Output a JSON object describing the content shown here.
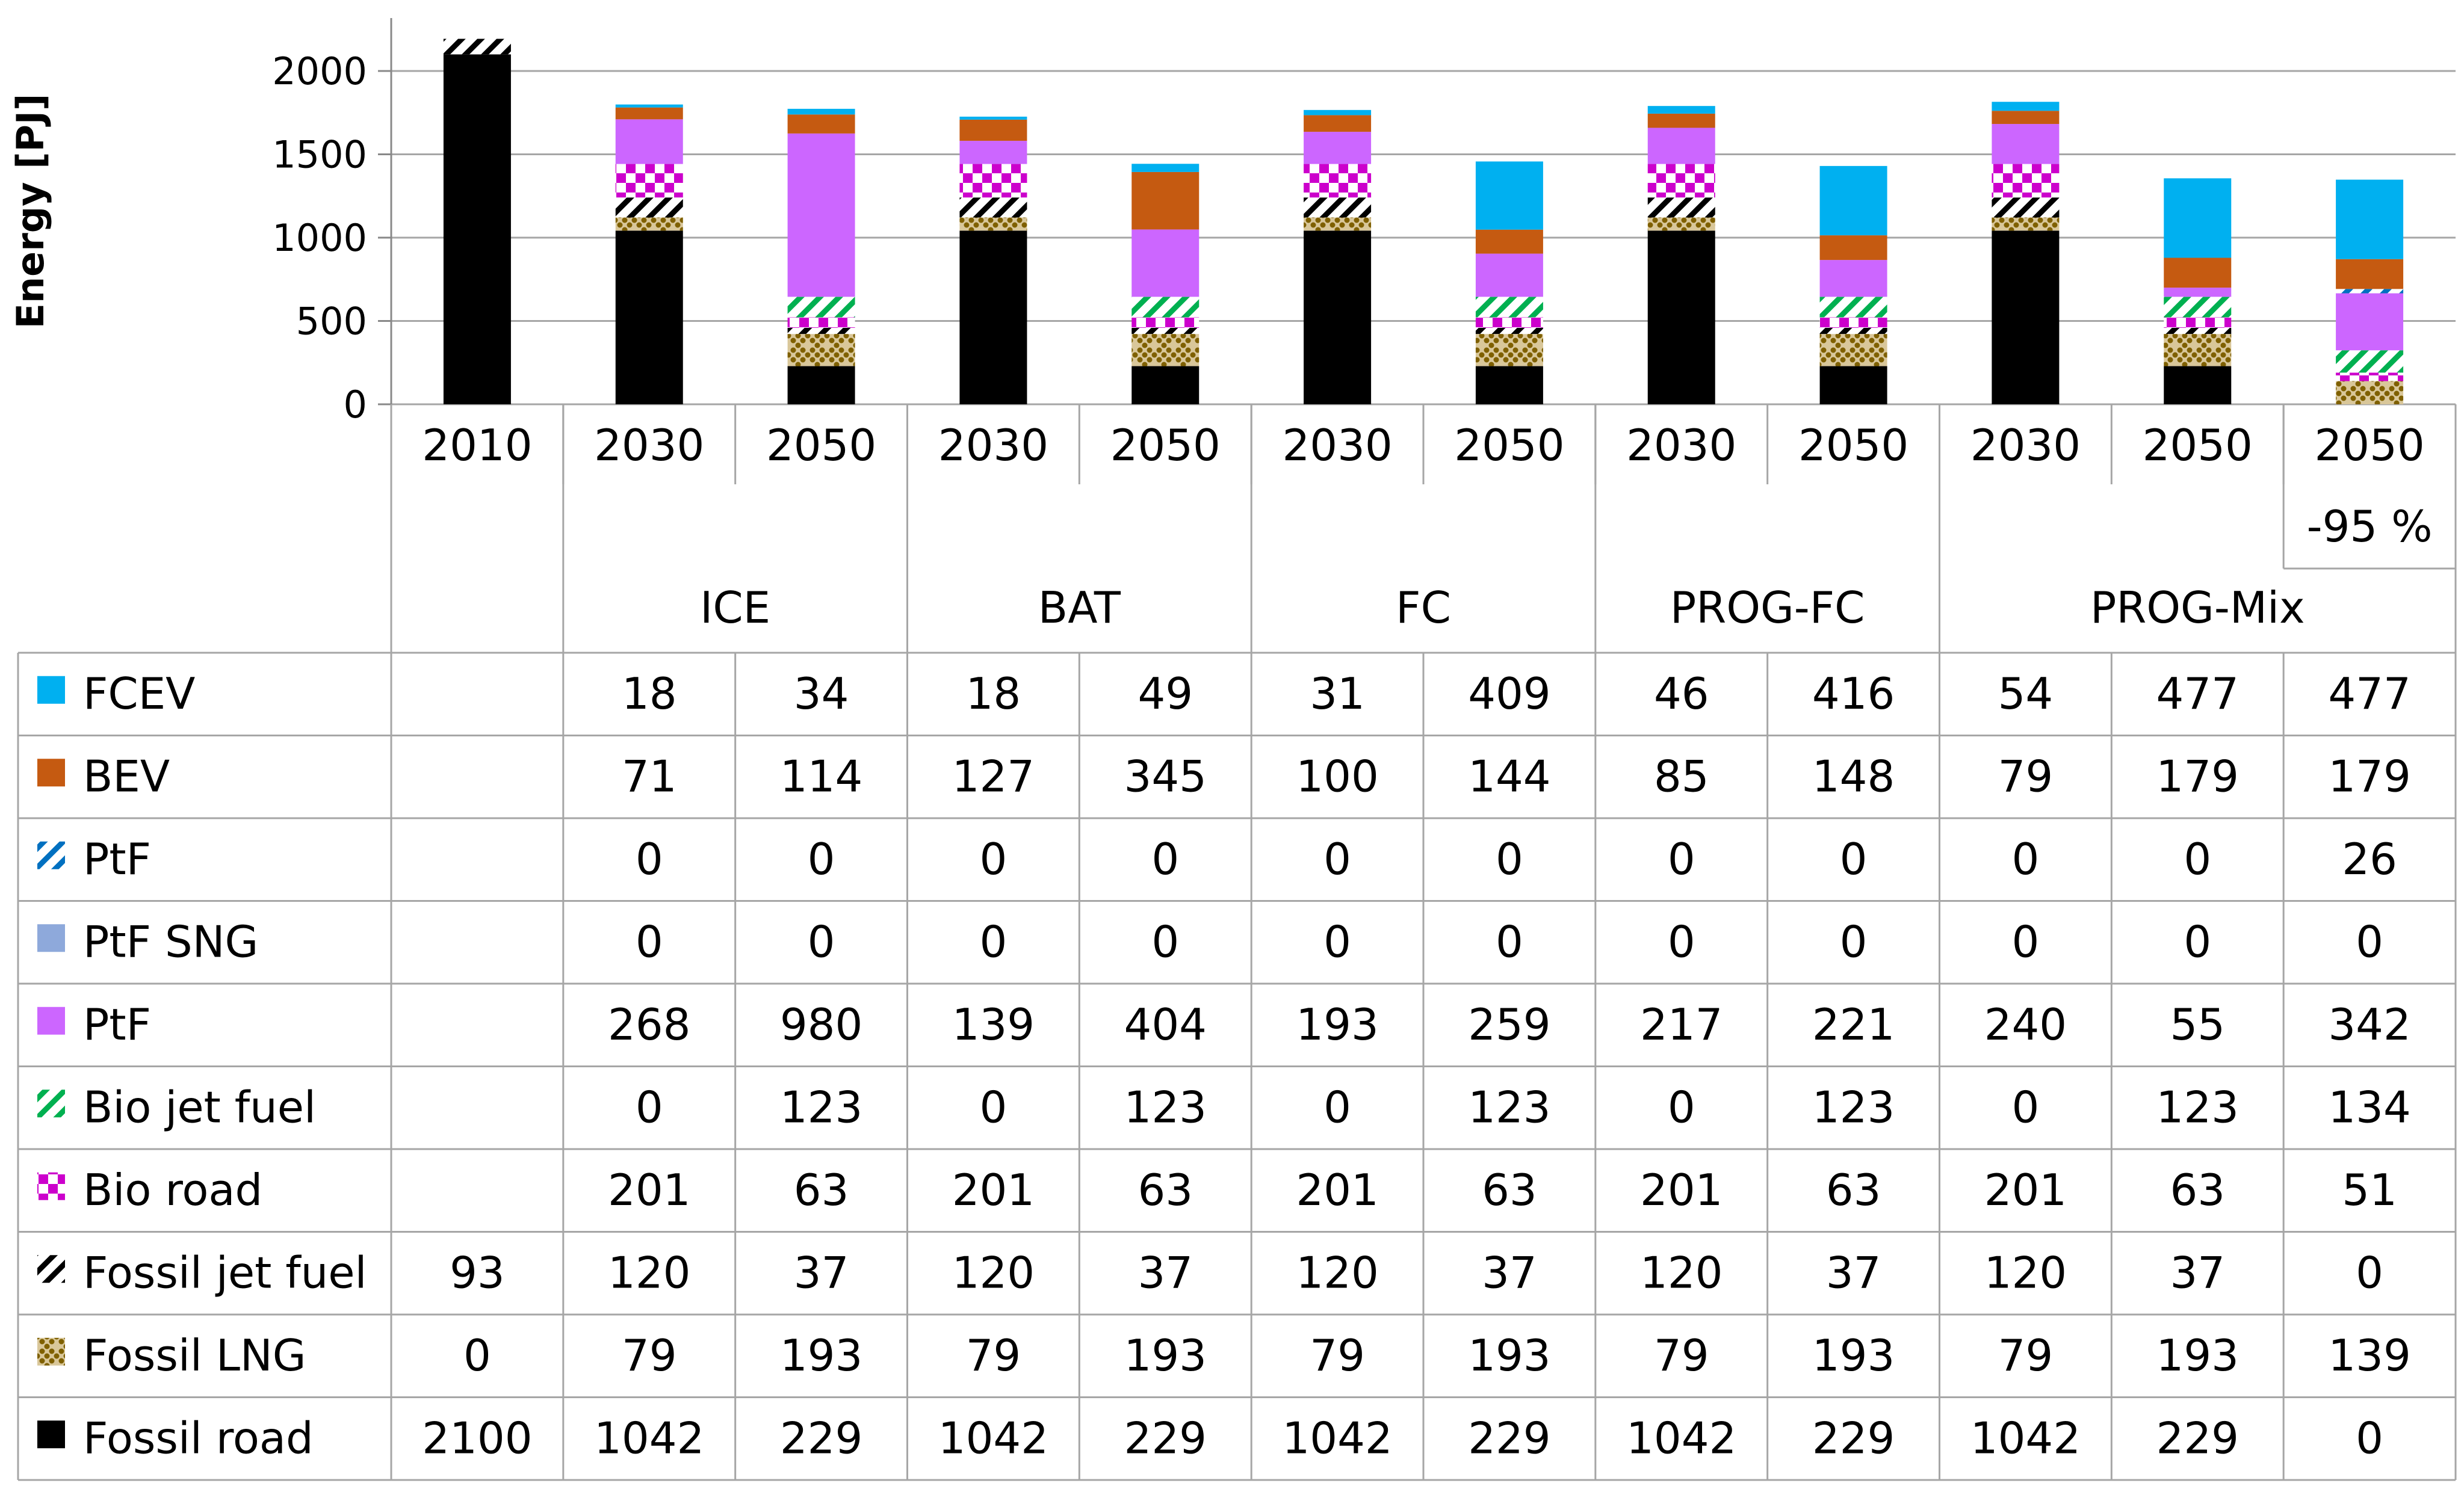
{
  "chart_data": {
    "type": "bar",
    "stacked": true,
    "ylabel": "Energy [PJ]",
    "ylim": [
      0,
      2200
    ],
    "yticks": [
      0,
      500,
      1000,
      1500,
      2000
    ],
    "grid": true,
    "columns": [
      {
        "year": "2010",
        "sub": ""
      },
      {
        "year": "2030",
        "sub": ""
      },
      {
        "year": "2050",
        "sub": ""
      },
      {
        "year": "2030",
        "sub": ""
      },
      {
        "year": "2050",
        "sub": ""
      },
      {
        "year": "2030",
        "sub": ""
      },
      {
        "year": "2050",
        "sub": ""
      },
      {
        "year": "2030",
        "sub": ""
      },
      {
        "year": "2050",
        "sub": ""
      },
      {
        "year": "2030",
        "sub": ""
      },
      {
        "year": "2050",
        "sub": ""
      },
      {
        "year": "2050",
        "sub": "-95 %"
      }
    ],
    "groups": [
      {
        "label": "",
        "span": [
          0,
          0
        ]
      },
      {
        "label": "ICE",
        "span": [
          1,
          2
        ]
      },
      {
        "label": "BAT",
        "span": [
          3,
          4
        ]
      },
      {
        "label": "FC",
        "span": [
          5,
          6
        ]
      },
      {
        "label": "PROG-FC",
        "span": [
          7,
          8
        ]
      },
      {
        "label": "PROG-Mix",
        "span": [
          9,
          11
        ]
      }
    ],
    "series": [
      {
        "name": "FCEV",
        "color": "#00b0f0",
        "pattern": "solid",
        "values": [
          "",
          "18",
          "34",
          "18",
          "49",
          "31",
          "409",
          "46",
          "416",
          "54",
          "477",
          "477"
        ]
      },
      {
        "name": "BEV",
        "color": "#c55a11",
        "pattern": "solid",
        "values": [
          "",
          "71",
          "114",
          "127",
          "345",
          "100",
          "144",
          "85",
          "148",
          "79",
          "179",
          "179"
        ]
      },
      {
        "name": "PtF",
        "color": "#0070c0",
        "pattern": "diag-stripe",
        "values": [
          "",
          "0",
          "0",
          "0",
          "0",
          "0",
          "0",
          "0",
          "0",
          "0",
          "0",
          "26"
        ]
      },
      {
        "name": "PtF SNG",
        "color": "#8ea9db",
        "pattern": "solid",
        "values": [
          "",
          "0",
          "0",
          "0",
          "0",
          "0",
          "0",
          "0",
          "0",
          "0",
          "0",
          "0"
        ]
      },
      {
        "name": "PtF",
        "color": "#cc66ff",
        "pattern": "solid",
        "values": [
          "",
          "268",
          "980",
          "139",
          "404",
          "193",
          "259",
          "217",
          "221",
          "240",
          "55",
          "342"
        ]
      },
      {
        "name": "Bio jet fuel",
        "color": "#00b050",
        "pattern": "diag-stripe",
        "values": [
          "",
          "0",
          "123",
          "0",
          "123",
          "0",
          "123",
          "0",
          "123",
          "0",
          "123",
          "134"
        ]
      },
      {
        "name": "Bio road",
        "color": "#cc00cc",
        "pattern": "checker",
        "values": [
          "",
          "201",
          "63",
          "201",
          "63",
          "201",
          "63",
          "201",
          "63",
          "201",
          "63",
          "51"
        ]
      },
      {
        "name": "Fossil jet fuel",
        "color": "#000000",
        "pattern": "diag-stripe",
        "values": [
          "93",
          "120",
          "37",
          "120",
          "37",
          "120",
          "37",
          "120",
          "37",
          "120",
          "37",
          "0"
        ]
      },
      {
        "name": "Fossil LNG",
        "color": "#7f6000",
        "pattern": "dots",
        "values": [
          "0",
          "79",
          "193",
          "79",
          "193",
          "79",
          "193",
          "79",
          "193",
          "79",
          "193",
          "139"
        ]
      },
      {
        "name": "Fossil road",
        "color": "#000000",
        "pattern": "solid",
        "values": [
          "2100",
          "1042",
          "229",
          "1042",
          "229",
          "1042",
          "229",
          "1042",
          "229",
          "1042",
          "229",
          "0"
        ]
      }
    ]
  }
}
